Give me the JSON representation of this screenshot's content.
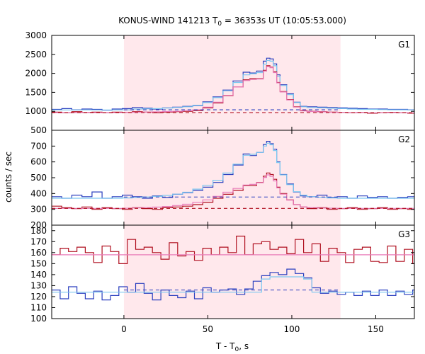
{
  "title_main": "KONUS-WIND 141213 T",
  "title_sub": "0",
  "title_rest": " = 36353s UT (10:05:53.000)",
  "ylabel": "counts / sec",
  "xlabel_main": "T - T",
  "xlabel_sub": "0",
  "xlabel_rest": ", s",
  "colors": {
    "shade": "#ffe8ec",
    "light_blue": "#7ec8f0",
    "blue": "#2a3fbf",
    "dark_red": "#b01020",
    "pink": "#e87ab8"
  },
  "chart_data": {
    "type": "line",
    "title": "KONUS-WIND 141213 T0 = 36353s UT (10:05:53.000)",
    "xlabel": "T - T0, s",
    "ylabel": "counts / sec",
    "xlim": [
      -43,
      173
    ],
    "x_ticks": [
      0,
      50,
      100,
      150
    ],
    "shaded_interval": [
      0,
      129
    ],
    "grid": false,
    "panels": [
      {
        "name": "G1",
        "ylim": [
          500,
          3000
        ],
        "y_ticks": [
          500,
          1000,
          1500,
          2000,
          2500,
          3000
        ],
        "bins": [
          -43,
          -37,
          -31,
          -25,
          -19,
          -13,
          -7,
          -1,
          5,
          11,
          17,
          23,
          29,
          35,
          41,
          47,
          53,
          59,
          65,
          71,
          75,
          79,
          83,
          85,
          87,
          89,
          91,
          93,
          97,
          101,
          105,
          109,
          115,
          121,
          127,
          133,
          139,
          145,
          151,
          157,
          163,
          169,
          173
        ],
        "series": [
          {
            "name": "hi",
            "color_key": "blue",
            "values": [
              1050,
              1070,
              1040,
              1060,
              1050,
              1030,
              1060,
              1070,
              1100,
              1080,
              1060,
              1090,
              1110,
              1130,
              1150,
              1250,
              1380,
              1560,
              1800,
              2030,
              2010,
              2060,
              2320,
              2400,
              2380,
              2250,
              1960,
              1700,
              1460,
              1240,
              1130,
              1120,
              1110,
              1100,
              1090,
              1080,
              1070,
              1060,
              1060,
              1050,
              1050,
              1040
            ]
          },
          {
            "name": "hi-fit",
            "color_key": "light_blue",
            "values": [
              1035,
              1035,
              1035,
              1035,
              1035,
              1035,
              1035,
              1040,
              1060,
              1065,
              1070,
              1085,
              1100,
              1120,
              1160,
              1230,
              1360,
              1540,
              1760,
              1960,
              1990,
              2020,
              2240,
              2340,
              2320,
              2200,
              1920,
              1680,
              1440,
              1230,
              1120,
              1100,
              1090,
              1080,
              1070,
              1060,
              1050,
              1050,
              1045,
              1040,
              1040,
              1035
            ]
          },
          {
            "name": "lo",
            "color_key": "dark_red",
            "values": [
              980,
              960,
              990,
              970,
              980,
              960,
              980,
              970,
              990,
              980,
              960,
              980,
              990,
              1000,
              1020,
              1090,
              1220,
              1410,
              1640,
              1830,
              1860,
              1860,
              2080,
              2200,
              2160,
              2040,
              1760,
              1520,
              1310,
              1120,
              1020,
              1000,
              990,
              980,
              970,
              960,
              970,
              950,
              960,
              970,
              960,
              950
            ]
          },
          {
            "name": "lo-fit",
            "color_key": "pink",
            "values": [
              965,
              965,
              965,
              965,
              965,
              965,
              965,
              970,
              975,
              980,
              985,
              995,
              1000,
              1015,
              1040,
              1110,
              1240,
              1420,
              1640,
              1810,
              1840,
              1850,
              2060,
              2180,
              2150,
              2020,
              1750,
              1510,
              1300,
              1110,
              1010,
              995,
              985,
              975,
              970,
              965,
              965,
              960,
              960,
              960,
              960,
              960
            ]
          }
        ],
        "baselines": [
          {
            "name": "hi-bg",
            "color_key": "blue",
            "y": 1040,
            "from": 0,
            "to": 129
          },
          {
            "name": "lo-bg",
            "color_key": "dark_red",
            "y": 965,
            "from": -43,
            "to": 173
          }
        ]
      },
      {
        "name": "G2",
        "ylim": [
          200,
          800
        ],
        "y_ticks": [
          200,
          300,
          400,
          500,
          600,
          700
        ],
        "bins": [
          -43,
          -37,
          -31,
          -25,
          -19,
          -13,
          -7,
          -1,
          5,
          11,
          17,
          23,
          29,
          35,
          41,
          47,
          53,
          59,
          65,
          71,
          75,
          79,
          83,
          85,
          87,
          89,
          91,
          93,
          97,
          101,
          105,
          109,
          115,
          121,
          127,
          133,
          139,
          145,
          151,
          157,
          163,
          169,
          173
        ],
        "series": [
          {
            "name": "hi",
            "color_key": "blue",
            "values": [
              380,
              370,
              390,
              380,
              410,
              370,
              380,
              390,
              380,
              370,
              385,
              375,
              395,
              405,
              420,
              440,
              470,
              520,
              580,
              650,
              640,
              660,
              710,
              730,
              715,
              680,
              600,
              520,
              460,
              410,
              385,
              380,
              390,
              375,
              380,
              370,
              385,
              375,
              380,
              370,
              375,
              380
            ]
          },
          {
            "name": "hi-fit",
            "color_key": "light_blue",
            "values": [
              370,
              370,
              370,
              370,
              370,
              370,
              370,
              372,
              375,
              378,
              382,
              388,
              396,
              408,
              428,
              452,
              484,
              530,
              586,
              642,
              648,
              660,
              700,
              718,
              708,
              672,
              596,
              518,
              456,
              412,
              390,
              380,
              376,
              372,
              370,
              370,
              370,
              370,
              370,
              370,
              370,
              370
            ]
          },
          {
            "name": "lo",
            "color_key": "dark_red",
            "values": [
              320,
              310,
              305,
              315,
              300,
              310,
              305,
              300,
              310,
              305,
              300,
              310,
              315,
              320,
              330,
              345,
              370,
              395,
              420,
              450,
              450,
              470,
              510,
              530,
              520,
              490,
              440,
              400,
              360,
              330,
              315,
              305,
              310,
              300,
              305,
              310,
              300,
              305,
              310,
              300,
              305,
              300
            ]
          },
          {
            "name": "lo-fit",
            "color_key": "pink",
            "values": [
              306,
              306,
              306,
              306,
              306,
              306,
              306,
              307,
              309,
              311,
              314,
              318,
              324,
              332,
              344,
              360,
              382,
              408,
              432,
              454,
              458,
              468,
              502,
              518,
              508,
              480,
              436,
              396,
              358,
              330,
              316,
              310,
              308,
              307,
              306,
              306,
              306,
              306,
              306,
              306,
              306,
              306
            ]
          }
        ],
        "baselines": [
          {
            "name": "hi-bg",
            "color_key": "blue",
            "y": 378,
            "from": 0,
            "to": 129
          },
          {
            "name": "lo-bg",
            "color_key": "dark_red",
            "y": 306,
            "from": -43,
            "to": 173
          }
        ]
      },
      {
        "name": "G3",
        "ylim": [
          100,
          185
        ],
        "y_ticks": [
          100,
          110,
          120,
          130,
          140,
          150,
          160,
          170,
          180
        ],
        "bins": [
          -43,
          -38,
          -33,
          -28,
          -23,
          -18,
          -13,
          -8,
          -3,
          2,
          7,
          12,
          17,
          22,
          27,
          32,
          37,
          42,
          47,
          52,
          57,
          62,
          67,
          72,
          77,
          82,
          87,
          92,
          97,
          102,
          107,
          112,
          117,
          122,
          127,
          132,
          137,
          142,
          147,
          152,
          157,
          162,
          167,
          172,
          173
        ],
        "series": [
          {
            "name": "lo",
            "color_key": "dark_red",
            "values": [
              158,
              164,
              161,
              165,
              160,
              151,
              166,
              161,
              150,
              172,
              163,
              165,
              160,
              154,
              169,
              157,
              161,
              153,
              164,
              158,
              165,
              160,
              175,
              158,
              168,
              170,
              163,
              165,
              159,
              172,
              160,
              168,
              152,
              164,
              160,
              151,
              163,
              165,
              152,
              151,
              166,
              152,
              163,
              150
            ]
          },
          {
            "name": "lo-fit",
            "color_key": "pink",
            "values": [
              158,
              158,
              158,
              158,
              158,
              158,
              158,
              158,
              158,
              158,
              158,
              158,
              158,
              158,
              158,
              158,
              158,
              158,
              158,
              158,
              158,
              158,
              158,
              158,
              158,
              158,
              158,
              158,
              158,
              158,
              158,
              158,
              158,
              158,
              158,
              158,
              158,
              158,
              158,
              158,
              158,
              158,
              158,
              158
            ]
          },
          {
            "name": "hi",
            "color_key": "blue",
            "values": [
              126,
              118,
              129,
              123,
              118,
              125,
              117,
              121,
              129,
              124,
              132,
              123,
              117,
              126,
              121,
              119,
              125,
              118,
              128,
              124,
              126,
              127,
              122,
              127,
              134,
              139,
              142,
              140,
              145,
              141,
              137,
              128,
              123,
              125,
              122,
              124,
              121,
              125,
              121,
              126,
              121,
              125,
              122,
              126
            ]
          },
          {
            "name": "hi-fit",
            "color_key": "light_blue",
            "values": [
              124,
              124,
              124,
              124,
              124,
              124,
              124,
              124,
              124,
              124,
              124,
              124,
              124,
              124,
              124,
              124,
              124,
              124,
              124,
              124,
              124,
              124,
              124,
              124,
              124,
              136,
              138,
              138,
              138,
              138,
              136,
              124,
              124,
              124,
              124,
              124,
              124,
              124,
              124,
              124,
              124,
              124,
              124,
              124
            ]
          }
        ],
        "baselines": [
          {
            "name": "hi-bg",
            "color_key": "blue",
            "y": 126,
            "from": 0,
            "to": 129
          }
        ]
      }
    ]
  }
}
